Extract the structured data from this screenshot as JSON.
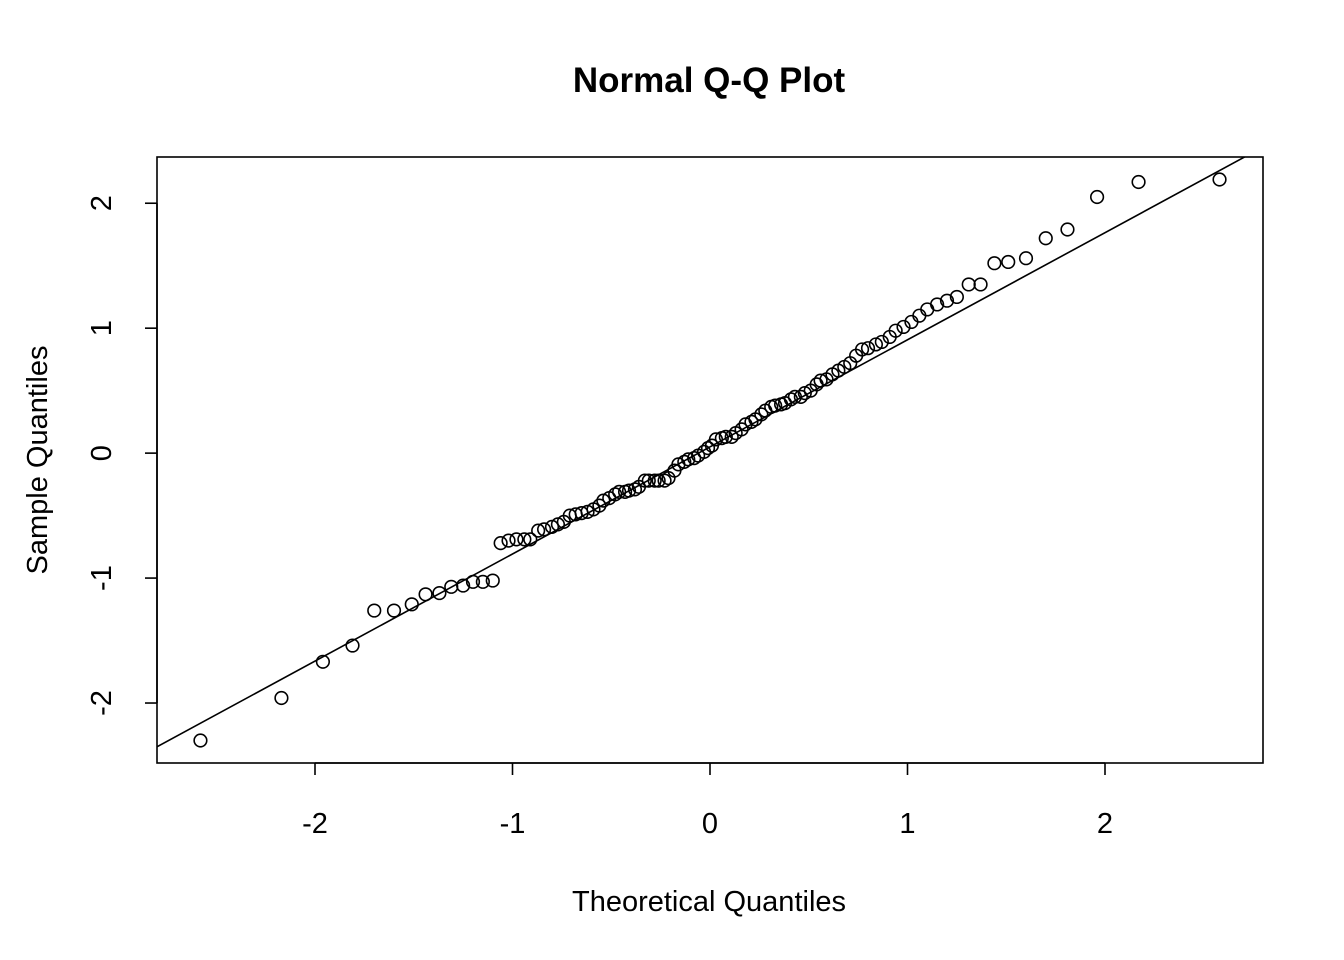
{
  "chart_data": {
    "type": "scatter",
    "title": "Normal Q-Q Plot",
    "xlabel": "Theoretical Quantiles",
    "ylabel": "Sample Quantiles",
    "xlim": [
      -2.8,
      2.8
    ],
    "ylim": [
      -2.48,
      2.37
    ],
    "x_ticks": [
      -2,
      -1,
      0,
      1,
      2
    ],
    "y_ticks": [
      -2,
      -1,
      0,
      1,
      2
    ],
    "x_tick_labels": [
      "-2",
      "-1",
      "0",
      "1",
      "2"
    ],
    "y_tick_labels": [
      "-2",
      "-1",
      "0",
      "1",
      "2"
    ],
    "grid": false,
    "legend": "none",
    "reference_line": {
      "x": [
        -2.8,
        2.8
      ],
      "y": [
        -2.35,
        2.45
      ]
    },
    "series": [
      {
        "x": [
          -2.58,
          -2.17,
          -1.96,
          -1.81,
          -1.7,
          -1.6,
          -1.51,
          -1.44,
          -1.37,
          -1.31,
          -1.25,
          -1.2,
          -1.15,
          -1.1,
          -1.06,
          -1.02,
          -0.98,
          -0.94,
          -0.91,
          -0.87,
          -0.84,
          -0.8,
          -0.77,
          -0.74,
          -0.71,
          -0.68,
          -0.65,
          -0.62,
          -0.59,
          -0.56,
          -0.54,
          -0.51,
          -0.48,
          -0.46,
          -0.43,
          -0.41,
          -0.38,
          -0.36,
          -0.33,
          -0.31,
          -0.28,
          -0.26,
          -0.23,
          -0.21,
          -0.18,
          -0.16,
          -0.13,
          -0.11,
          -0.08,
          -0.06,
          -0.03,
          -0.01,
          0.01,
          0.03,
          0.06,
          0.08,
          0.11,
          0.13,
          0.16,
          0.18,
          0.21,
          0.23,
          0.26,
          0.28,
          0.31,
          0.33,
          0.36,
          0.38,
          0.41,
          0.43,
          0.46,
          0.48,
          0.51,
          0.54,
          0.56,
          0.59,
          0.62,
          0.65,
          0.68,
          0.71,
          0.74,
          0.77,
          0.8,
          0.84,
          0.87,
          0.91,
          0.94,
          0.98,
          1.02,
          1.06,
          1.1,
          1.15,
          1.2,
          1.25,
          1.31,
          1.37,
          1.44,
          1.51,
          1.6,
          1.7,
          1.81,
          1.96,
          2.17,
          2.58
        ],
        "y": [
          -2.3,
          -1.96,
          -1.67,
          -1.54,
          -1.26,
          -1.26,
          -1.21,
          -1.13,
          -1.12,
          -1.07,
          -1.06,
          -1.03,
          -1.03,
          -1.02,
          -0.72,
          -0.7,
          -0.69,
          -0.69,
          -0.69,
          -0.62,
          -0.61,
          -0.59,
          -0.57,
          -0.55,
          -0.5,
          -0.49,
          -0.48,
          -0.47,
          -0.45,
          -0.42,
          -0.38,
          -0.36,
          -0.33,
          -0.31,
          -0.31,
          -0.3,
          -0.29,
          -0.27,
          -0.22,
          -0.22,
          -0.22,
          -0.22,
          -0.22,
          -0.2,
          -0.14,
          -0.09,
          -0.07,
          -0.05,
          -0.04,
          -0.02,
          0.01,
          0.04,
          0.06,
          0.11,
          0.12,
          0.13,
          0.13,
          0.16,
          0.19,
          0.23,
          0.25,
          0.27,
          0.31,
          0.34,
          0.37,
          0.38,
          0.39,
          0.4,
          0.43,
          0.45,
          0.45,
          0.48,
          0.5,
          0.55,
          0.58,
          0.59,
          0.63,
          0.66,
          0.69,
          0.72,
          0.78,
          0.83,
          0.84,
          0.87,
          0.89,
          0.93,
          0.98,
          1.01,
          1.05,
          1.1,
          1.15,
          1.19,
          1.22,
          1.25,
          1.35,
          1.35,
          1.52,
          1.53,
          1.56,
          1.72,
          1.79,
          2.05,
          2.17,
          2.19
        ]
      }
    ]
  }
}
